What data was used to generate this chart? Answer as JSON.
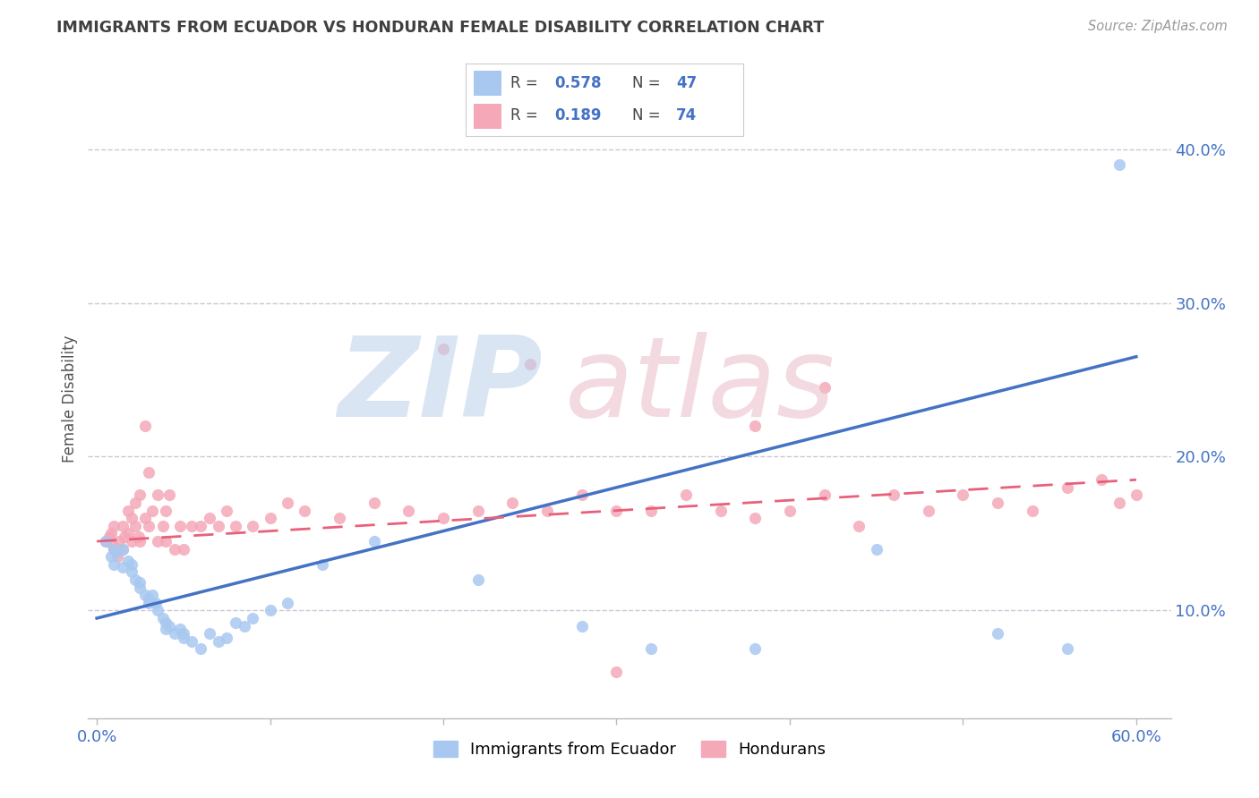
{
  "title": "IMMIGRANTS FROM ECUADOR VS HONDURAN FEMALE DISABILITY CORRELATION CHART",
  "source": "Source: ZipAtlas.com",
  "ylabel": "Female Disability",
  "xlim": [
    -0.005,
    0.62
  ],
  "ylim": [
    0.03,
    0.445
  ],
  "xticks": [
    0.0,
    0.1,
    0.2,
    0.3,
    0.4,
    0.5,
    0.6
  ],
  "xticklabels_ends": [
    "0.0%",
    "60.0%"
  ],
  "xticklabels_ends_pos": [
    0.0,
    0.6
  ],
  "yticks_right": [
    0.1,
    0.2,
    0.3,
    0.4
  ],
  "ytick_labels_right": [
    "10.0%",
    "20.0%",
    "30.0%",
    "40.0%"
  ],
  "blue_color": "#a8c8f0",
  "pink_color": "#f4a8b8",
  "blue_line_color": "#4472c4",
  "pink_line_color": "#e8607a",
  "legend_text_color": "#4472c4",
  "title_color": "#404040",
  "grid_color": "#c8c8d8",
  "R_blue": 0.578,
  "N_blue": 47,
  "R_pink": 0.189,
  "N_pink": 74,
  "blue_scatter_x": [
    0.005,
    0.008,
    0.01,
    0.01,
    0.012,
    0.015,
    0.015,
    0.018,
    0.02,
    0.02,
    0.022,
    0.025,
    0.025,
    0.028,
    0.03,
    0.03,
    0.032,
    0.034,
    0.035,
    0.038,
    0.04,
    0.04,
    0.042,
    0.045,
    0.048,
    0.05,
    0.05,
    0.055,
    0.06,
    0.065,
    0.07,
    0.075,
    0.08,
    0.085,
    0.09,
    0.1,
    0.11,
    0.13,
    0.16,
    0.22,
    0.28,
    0.32,
    0.38,
    0.45,
    0.52,
    0.56,
    0.59
  ],
  "blue_scatter_y": [
    0.145,
    0.135,
    0.14,
    0.13,
    0.138,
    0.14,
    0.128,
    0.132,
    0.13,
    0.125,
    0.12,
    0.118,
    0.115,
    0.11,
    0.108,
    0.105,
    0.11,
    0.105,
    0.1,
    0.095,
    0.092,
    0.088,
    0.09,
    0.085,
    0.088,
    0.085,
    0.082,
    0.08,
    0.075,
    0.085,
    0.08,
    0.082,
    0.092,
    0.09,
    0.095,
    0.1,
    0.105,
    0.13,
    0.145,
    0.12,
    0.09,
    0.075,
    0.075,
    0.14,
    0.085,
    0.075,
    0.39
  ],
  "pink_scatter_x": [
    0.005,
    0.007,
    0.008,
    0.009,
    0.01,
    0.01,
    0.012,
    0.013,
    0.015,
    0.015,
    0.016,
    0.018,
    0.018,
    0.02,
    0.02,
    0.022,
    0.022,
    0.024,
    0.025,
    0.025,
    0.028,
    0.028,
    0.03,
    0.03,
    0.032,
    0.035,
    0.035,
    0.038,
    0.04,
    0.04,
    0.042,
    0.045,
    0.048,
    0.05,
    0.055,
    0.06,
    0.065,
    0.07,
    0.075,
    0.08,
    0.09,
    0.1,
    0.11,
    0.12,
    0.14,
    0.16,
    0.18,
    0.2,
    0.22,
    0.24,
    0.26,
    0.28,
    0.3,
    0.32,
    0.34,
    0.36,
    0.38,
    0.4,
    0.42,
    0.44,
    0.46,
    0.48,
    0.5,
    0.52,
    0.54,
    0.56,
    0.58,
    0.59,
    0.6,
    0.38,
    0.42,
    0.25,
    0.2,
    0.3
  ],
  "pink_scatter_y": [
    0.145,
    0.148,
    0.15,
    0.142,
    0.14,
    0.155,
    0.135,
    0.145,
    0.14,
    0.155,
    0.148,
    0.15,
    0.165,
    0.145,
    0.16,
    0.155,
    0.17,
    0.148,
    0.145,
    0.175,
    0.16,
    0.22,
    0.155,
    0.19,
    0.165,
    0.145,
    0.175,
    0.155,
    0.145,
    0.165,
    0.175,
    0.14,
    0.155,
    0.14,
    0.155,
    0.155,
    0.16,
    0.155,
    0.165,
    0.155,
    0.155,
    0.16,
    0.17,
    0.165,
    0.16,
    0.17,
    0.165,
    0.16,
    0.165,
    0.17,
    0.165,
    0.175,
    0.165,
    0.165,
    0.175,
    0.165,
    0.16,
    0.165,
    0.175,
    0.155,
    0.175,
    0.165,
    0.175,
    0.17,
    0.165,
    0.18,
    0.185,
    0.17,
    0.175,
    0.22,
    0.245,
    0.26,
    0.27,
    0.06
  ]
}
